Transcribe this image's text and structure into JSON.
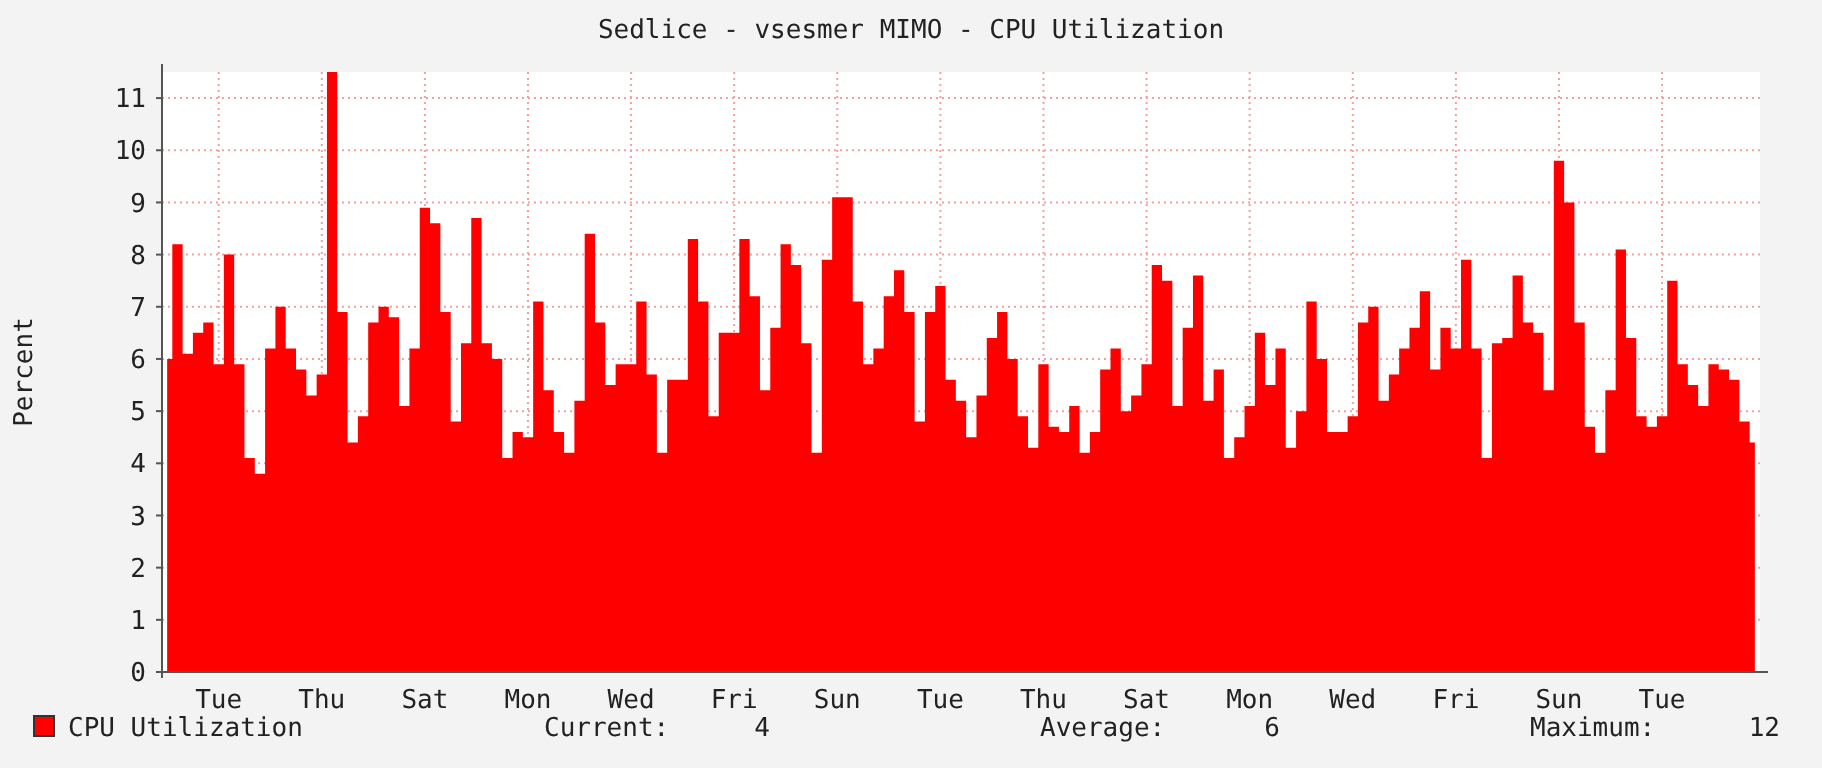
{
  "chart_data": {
    "type": "area",
    "title": "Sedlice - vsesmer MIMO - CPU Utilization",
    "ylabel": "Percent",
    "categories": [
      null,
      null,
      null,
      null,
      null,
      "Tue",
      null,
      null,
      null,
      null,
      null,
      null,
      null,
      null,
      null,
      "Thu",
      null,
      null,
      null,
      null,
      null,
      null,
      null,
      null,
      null,
      "Sat",
      null,
      null,
      null,
      null,
      null,
      null,
      null,
      null,
      null,
      "Mon",
      null,
      null,
      null,
      null,
      null,
      null,
      null,
      null,
      null,
      "Wed",
      null,
      null,
      null,
      null,
      null,
      null,
      null,
      null,
      null,
      "Fri",
      null,
      null,
      null,
      null,
      null,
      null,
      null,
      null,
      null,
      "Sun",
      null,
      null,
      null,
      null,
      null,
      null,
      null,
      null,
      null,
      "Tue",
      null,
      null,
      null,
      null,
      null,
      null,
      null,
      null,
      null,
      "Thu",
      null,
      null,
      null,
      null,
      null,
      null,
      null,
      null,
      null,
      "Sat",
      null,
      null,
      null,
      null,
      null,
      null,
      null,
      null,
      null,
      "Mon",
      null,
      null,
      null,
      null,
      null,
      null,
      null,
      null,
      null,
      "Wed",
      null,
      null,
      null,
      null,
      null,
      null,
      null,
      null,
      null,
      "Fri",
      null,
      null,
      null,
      null,
      null,
      null,
      null,
      null,
      null,
      "Sun",
      null,
      null,
      null,
      null,
      null,
      null,
      null,
      null,
      null,
      "Tue",
      null,
      null,
      null,
      null,
      null,
      null,
      null,
      null,
      null
    ],
    "series": [
      {
        "name": "CPU Utilization",
        "color": "#ff0000",
        "values": [
          6.0,
          8.2,
          6.1,
          6.5,
          6.7,
          5.9,
          8.0,
          5.9,
          4.1,
          3.8,
          6.2,
          7.0,
          6.2,
          5.8,
          5.3,
          5.7,
          11.5,
          6.9,
          4.4,
          4.9,
          6.7,
          7.0,
          6.8,
          5.1,
          6.2,
          8.9,
          8.6,
          6.9,
          4.8,
          6.3,
          8.7,
          6.3,
          6.0,
          4.1,
          4.6,
          4.5,
          7.1,
          5.4,
          4.6,
          4.2,
          5.2,
          8.4,
          6.7,
          5.5,
          5.9,
          5.9,
          7.1,
          5.7,
          4.2,
          5.6,
          5.6,
          8.3,
          7.1,
          4.9,
          6.5,
          6.5,
          8.3,
          7.2,
          5.4,
          6.6,
          8.2,
          7.8,
          6.3,
          4.2,
          7.9,
          9.1,
          9.1,
          7.1,
          5.9,
          6.2,
          7.2,
          7.7,
          6.9,
          4.8,
          6.9,
          7.4,
          5.6,
          5.2,
          4.5,
          5.3,
          6.4,
          6.9,
          6.0,
          4.9,
          4.3,
          5.9,
          4.7,
          4.6,
          5.1,
          4.2,
          4.6,
          5.8,
          6.2,
          5.0,
          5.3,
          5.9,
          7.8,
          7.5,
          5.1,
          6.6,
          7.6,
          5.2,
          5.8,
          4.1,
          4.5,
          5.1,
          6.5,
          5.5,
          6.2,
          4.3,
          5.0,
          7.1,
          6.0,
          4.6,
          4.6,
          4.9,
          6.7,
          7.0,
          5.2,
          5.7,
          6.2,
          6.6,
          7.3,
          5.8,
          6.6,
          6.2,
          7.9,
          6.2,
          4.1,
          6.3,
          6.4,
          7.6,
          6.7,
          6.5,
          5.4,
          9.8,
          9.0,
          6.7,
          4.7,
          4.2,
          5.4,
          8.1,
          6.4,
          4.9,
          4.7,
          4.9,
          7.5,
          5.9,
          5.5,
          5.1,
          5.9,
          5.8,
          5.6,
          4.8,
          4.4
        ]
      }
    ],
    "ylim": [
      0,
      11.5
    ],
    "yticks": [
      0,
      1,
      2,
      3,
      4,
      5,
      6,
      7,
      8,
      9,
      10,
      11
    ],
    "grid": true,
    "legend": "bottom left",
    "annotations": [
      "Current:",
      "4",
      "Average:",
      "6",
      "Maximum:",
      "12"
    ]
  }
}
